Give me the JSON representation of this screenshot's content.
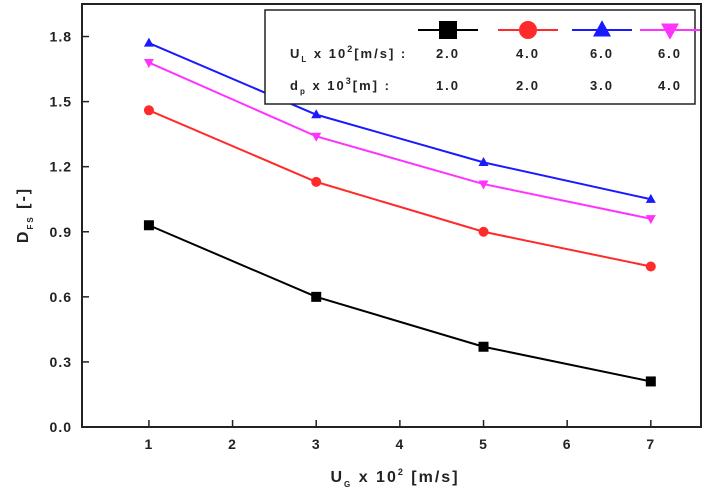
{
  "chart_data": {
    "type": "line",
    "x": [
      1,
      3,
      5,
      7
    ],
    "xlim": [
      0.2,
      7.6
    ],
    "ylim": [
      0.0,
      1.95
    ],
    "xticks": [
      "1",
      "2",
      "3",
      "4",
      "5",
      "6",
      "7"
    ],
    "yticks": [
      "0.0",
      "0.3",
      "0.6",
      "0.9",
      "1.2",
      "1.5",
      "1.8"
    ],
    "xlabel": {
      "main": "U",
      "sub": "G",
      "mid": " x 10",
      "sup": "2",
      "tail": " [m/s]"
    },
    "ylabel": {
      "main": "D",
      "sub": "FS",
      "tail": " [-]"
    },
    "legend": {
      "position": "top-right",
      "row1": {
        "main": "U",
        "sub": "L",
        "mid": " x 10",
        "sup": "2",
        "tail": "[m/s] :"
      },
      "row2": {
        "main": "d",
        "sub": "p",
        "mid": " x 10",
        "sup": "3",
        "tail": "[m] :"
      }
    },
    "series": [
      {
        "ul": "2.0",
        "dp": "1.0",
        "color": "#000000",
        "marker": "square",
        "values": [
          0.93,
          0.6,
          0.37,
          0.21
        ]
      },
      {
        "ul": "4.0",
        "dp": "2.0",
        "color": "#ff2a2a",
        "marker": "circle",
        "values": [
          1.46,
          1.13,
          0.9,
          0.74
        ]
      },
      {
        "ul": "6.0",
        "dp": "3.0",
        "color": "#1a1aff",
        "marker": "triangle-up",
        "values": [
          1.77,
          1.44,
          1.22,
          1.05
        ]
      },
      {
        "ul": "6.0",
        "dp": "4.0",
        "color": "#ff33ff",
        "marker": "triangle-down",
        "values": [
          1.68,
          1.34,
          1.12,
          0.96
        ]
      }
    ]
  }
}
